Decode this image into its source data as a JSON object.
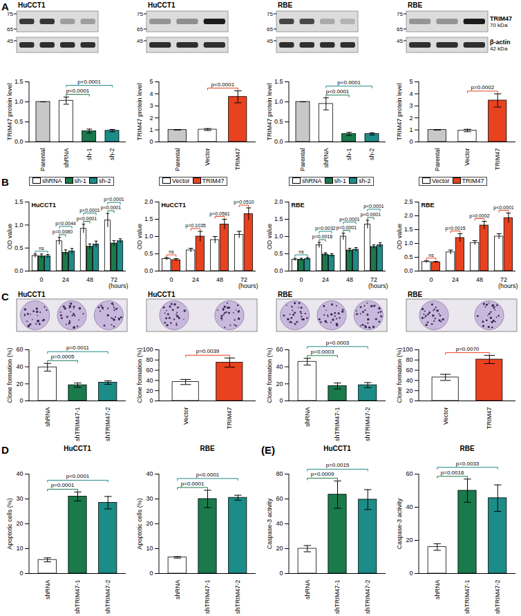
{
  "panel_letters": [
    "A",
    "B",
    "C",
    "D",
    "(E)"
  ],
  "blots": {
    "proteins": [
      {
        "name": "TRIM47",
        "size": "70 kDa"
      },
      {
        "name": "β-actin",
        "size": "42 kDa"
      }
    ],
    "ladder": {
      "TRIM47": [
        75,
        65
      ],
      "β-actin": [
        45
      ]
    },
    "panels": [
      {
        "title": "HuCCT1",
        "TRIM47": [
          0.8,
          0.82,
          0.3,
          0.3
        ],
        "β-actin": [
          0.85,
          0.85,
          0.85,
          0.85
        ]
      },
      {
        "title": "HuCCT1",
        "TRIM47": [
          0.35,
          0.38,
          0.95
        ],
        "β-actin": [
          0.85,
          0.85,
          0.85
        ]
      },
      {
        "title": "RBE",
        "TRIM47": [
          0.75,
          0.72,
          0.25,
          0.2
        ],
        "β-actin": [
          0.85,
          0.85,
          0.85,
          0.85
        ]
      },
      {
        "title": "RBE",
        "TRIM47": [
          0.35,
          0.35,
          0.95
        ],
        "β-actin": [
          0.85,
          0.85,
          0.85
        ]
      }
    ]
  },
  "colony_titles": [
    "HuCCT1",
    "HuCCT1",
    "RBE",
    "RBE"
  ],
  "chart_data": [
    {
      "type": "bar",
      "ylabel": "TRIM47 protein level",
      "categories": [
        "Parental",
        "shRNA",
        "sh-1",
        "sh-2"
      ],
      "values": [
        1.0,
        1.03,
        0.27,
        0.28
      ],
      "errors": [
        0.0,
        0.09,
        0.05,
        0.03
      ],
      "colors": [
        "#c8c8c8",
        "#ffffff",
        "#1a7a4c",
        "#1c8c88"
      ],
      "ylim": [
        0,
        1.5
      ],
      "yticks": [
        {
          "value": 0,
          "label": "0.0"
        },
        0.5,
        {
          "value": 1,
          "label": "1.0"
        },
        1.5
      ],
      "annotations": [
        {
          "from": "shRNA",
          "to": "sh-1",
          "text": "p<0.0001"
        },
        {
          "from": "shRNA",
          "to": "sh-2",
          "text": "p<0.0001"
        }
      ]
    },
    {
      "type": "bar",
      "ylabel": "TRIM47 protein level",
      "categories": [
        "Parental",
        "Vector",
        "TRIM47"
      ],
      "values": [
        1.0,
        1.03,
        3.75
      ],
      "errors": [
        0.0,
        0.08,
        0.5
      ],
      "colors": [
        "#c8c8c8",
        "#ffffff",
        "#e8421f"
      ],
      "ylim": [
        0,
        5
      ],
      "yticks": [
        0,
        1,
        2,
        3,
        4,
        5
      ],
      "annotations": [
        {
          "from": "Vector",
          "to": "TRIM47",
          "text": "p<0.0001"
        }
      ]
    },
    {
      "type": "bar",
      "ylabel": "TRIM47 protein level",
      "categories": [
        "Parental",
        "shRNA",
        "sh-1",
        "sh-2"
      ],
      "values": [
        1.0,
        0.95,
        0.2,
        0.2
      ],
      "errors": [
        0.0,
        0.15,
        0.04,
        0.03
      ],
      "colors": [
        "#c8c8c8",
        "#ffffff",
        "#1a7a4c",
        "#1c8c88"
      ],
      "ylim": [
        0,
        1.5
      ],
      "yticks": [
        {
          "value": 0,
          "label": "0.0"
        },
        0.5,
        {
          "value": 1,
          "label": "1.0"
        },
        1.5
      ],
      "annotations": [
        {
          "from": "shRNA",
          "to": "sh-1",
          "text": "p<0.0001"
        },
        {
          "from": "shRNA",
          "to": "sh-2",
          "text": "p<0.0001"
        }
      ]
    },
    {
      "type": "bar",
      "ylabel": "TRIM47 protein level",
      "categories": [
        "Parental",
        "Vector",
        "TRIM47"
      ],
      "values": [
        1.0,
        0.95,
        3.45
      ],
      "errors": [
        0.0,
        0.1,
        0.55
      ],
      "colors": [
        "#c8c8c8",
        "#ffffff",
        "#e8421f"
      ],
      "ylim": [
        0,
        5
      ],
      "yticks": [
        0,
        1,
        2,
        3,
        4,
        5
      ],
      "annotations": [
        {
          "from": "Vector",
          "to": "TRIM47",
          "text": "p=0.0002"
        }
      ]
    },
    {
      "type": "bar",
      "title": "HuCCT1",
      "ylabel": "OD value",
      "xlabel": "(hours)",
      "categories": [
        "0",
        "24",
        "48",
        "72"
      ],
      "legend": "top",
      "ylim": [
        0,
        1.5
      ],
      "yticks": [
        {
          "value": 0,
          "label": "0.0"
        },
        0.5,
        {
          "value": 1,
          "label": "1.0"
        },
        1.5
      ],
      "series": [
        {
          "name": "shRNA",
          "color": "#ffffff",
          "values": [
            0.33,
            0.65,
            0.92,
            1.1
          ],
          "errors": [
            0.04,
            0.08,
            0.1,
            0.15
          ]
        },
        {
          "name": "sh-1",
          "color": "#1a7a4c",
          "values": [
            0.32,
            0.4,
            0.53,
            0.6
          ],
          "errors": [
            0.05,
            0.06,
            0.06,
            0.06
          ]
        },
        {
          "name": "sh-2",
          "color": "#1c8c88",
          "values": [
            0.32,
            0.43,
            0.58,
            0.65
          ],
          "errors": [
            0.04,
            0.06,
            0.07,
            0.05
          ]
        }
      ],
      "annotations": [
        {
          "x": "0",
          "text": "ns"
        },
        {
          "x": "24",
          "series": "sh-1",
          "text": "p=0.0080"
        },
        {
          "x": "24",
          "series": "sh-2",
          "text": "p=0.0044"
        },
        {
          "x": "48",
          "series": "sh-1",
          "text": "p<0.0001"
        },
        {
          "x": "48",
          "series": "sh-2",
          "text": "p<0.0001"
        },
        {
          "x": "72",
          "series": "sh-1",
          "text": "p<0.0001"
        },
        {
          "x": "72",
          "series": "sh-2",
          "text": "p=0.0001"
        }
      ]
    },
    {
      "type": "bar",
      "title": "HuCCT1",
      "ylabel": "OD value",
      "xlabel": "(hours)",
      "categories": [
        "0",
        "24",
        "48",
        "72"
      ],
      "legend": "top",
      "ylim": [
        0,
        2
      ],
      "yticks": [
        {
          "value": 0,
          "label": "0.0"
        },
        0.5,
        {
          "value": 1,
          "label": "1.0"
        },
        1.5,
        {
          "value": 2,
          "label": "2.0"
        }
      ],
      "series": [
        {
          "name": "Vector",
          "color": "#ffffff",
          "values": [
            0.35,
            0.6,
            0.9,
            1.05
          ],
          "errors": [
            0.04,
            0.06,
            0.1,
            0.1
          ]
        },
        {
          "name": "TRIM47",
          "color": "#e8421f",
          "values": [
            0.32,
            1.0,
            1.35,
            1.65
          ],
          "errors": [
            0.04,
            0.15,
            0.15,
            0.18
          ]
        }
      ],
      "annotations": [
        {
          "x": "0",
          "text": "ns"
        },
        {
          "x": "24",
          "series": "TRIM47",
          "text": "p=0.1035"
        },
        {
          "x": "48",
          "series": "TRIM47",
          "text": "p=0.0561"
        },
        {
          "x": "72",
          "series": "TRIM47",
          "text": "p=0.0510"
        }
      ]
    },
    {
      "type": "bar",
      "title": "RBE",
      "ylabel": "OD value",
      "xlabel": "(hours)",
      "categories": [
        "0",
        "24",
        "48",
        "72"
      ],
      "legend": "top",
      "ylim": [
        0,
        2
      ],
      "yticks": [
        {
          "value": 0,
          "label": "0.0"
        },
        0.5,
        {
          "value": 1,
          "label": "1.0"
        },
        1.5,
        {
          "value": 2,
          "label": "2.0"
        }
      ],
      "series": [
        {
          "name": "shRNA",
          "color": "#ffffff",
          "values": [
            0.33,
            0.75,
            1.0,
            1.35
          ],
          "errors": [
            0.04,
            0.08,
            0.1,
            0.12
          ]
        },
        {
          "name": "sh-1",
          "color": "#1a7a4c",
          "values": [
            0.33,
            0.48,
            0.6,
            0.7
          ],
          "errors": [
            0.04,
            0.05,
            0.06,
            0.06
          ]
        },
        {
          "name": "sh-2",
          "color": "#1c8c88",
          "values": [
            0.35,
            0.45,
            0.62,
            0.75
          ],
          "errors": [
            0.04,
            0.05,
            0.06,
            0.07
          ]
        }
      ],
      "annotations": [
        {
          "x": "0",
          "text": "ns"
        },
        {
          "x": "24",
          "series": "sh-1",
          "text": "p=0.0018"
        },
        {
          "x": "24",
          "series": "sh-2",
          "text": "p=0.0032"
        },
        {
          "x": "48",
          "series": "sh-1",
          "text": "p<0.0001"
        },
        {
          "x": "48",
          "series": "sh-2",
          "text": "p<0.0001"
        },
        {
          "x": "72",
          "series": "sh-1",
          "text": "p<0.0001"
        },
        {
          "x": "72",
          "series": "sh-2",
          "text": "p<0.0001"
        }
      ]
    },
    {
      "type": "bar",
      "title": "RBE",
      "ylabel": "OD value",
      "xlabel": "(hours)",
      "categories": [
        "0",
        "24",
        "48",
        "72"
      ],
      "legend": "top",
      "ylim": [
        0,
        2.5
      ],
      "yticks": [
        {
          "value": 0,
          "label": "0.0"
        },
        0.5,
        {
          "value": 1,
          "label": "1.0"
        },
        1.5,
        {
          "value": 2,
          "label": "2.0"
        },
        2.5
      ],
      "series": [
        {
          "name": "Vector",
          "color": "#ffffff",
          "values": [
            0.33,
            0.68,
            1.02,
            1.25
          ],
          "errors": [
            0.04,
            0.08,
            0.08,
            0.1
          ]
        },
        {
          "name": "TRIM47",
          "color": "#e8421f",
          "values": [
            0.32,
            1.2,
            1.65,
            1.92
          ],
          "errors": [
            0.03,
            0.15,
            0.15,
            0.18
          ]
        }
      ],
      "annotations": [
        {
          "x": "0",
          "text": "ns"
        },
        {
          "x": "24",
          "series": "TRIM47",
          "text": "p=0.0015"
        },
        {
          "x": "48",
          "series": "TRIM47",
          "text": "p=0.0002"
        },
        {
          "x": "72",
          "series": "TRIM47",
          "text": "p<0.0001"
        }
      ]
    },
    {
      "type": "bar",
      "ylabel": "Clone formation (%)",
      "categories": [
        "shRNA",
        "shTRIM47-1",
        "shTRIM47-2"
      ],
      "values": [
        39.5,
        18.5,
        21.5
      ],
      "errors": [
        4.5,
        2.5,
        2
      ],
      "colors": [
        "#ffffff",
        "#1a7a4c",
        "#1c8c88"
      ],
      "ylim": [
        0,
        60
      ],
      "yticks": [
        0,
        20,
        40,
        60
      ],
      "annotations": [
        {
          "from": "shRNA",
          "to": "shTRIM47-1",
          "text": "p=0.0005"
        },
        {
          "from": "shRNA",
          "to": "shTRIM47-2",
          "text": "p=0.0011"
        }
      ]
    },
    {
      "type": "bar",
      "ylabel": "Clone formation (%)",
      "categories": [
        "Vector",
        "TRIM47"
      ],
      "values": [
        37,
        75
      ],
      "errors": [
        5,
        9
      ],
      "colors": [
        "#ffffff",
        "#e8421f"
      ],
      "ylim": [
        0,
        100
      ],
      "yticks": [
        0,
        20,
        40,
        60,
        80,
        100
      ],
      "annotations": [
        {
          "from": "Vector",
          "to": "TRIM47",
          "text": "p=0.0039"
        }
      ]
    },
    {
      "type": "bar",
      "ylabel": "Clone formation (%)",
      "categories": [
        "shRNA",
        "shTRIM47-1",
        "shTRIM47-2"
      ],
      "values": [
        46,
        17.5,
        18.5
      ],
      "errors": [
        4,
        3.5,
        3
      ],
      "colors": [
        "#ffffff",
        "#1a7a4c",
        "#1c8c88"
      ],
      "ylim": [
        0,
        60
      ],
      "yticks": [
        0,
        20,
        40,
        60
      ],
      "annotations": [
        {
          "from": "shRNA",
          "to": "shTRIM47-1",
          "text": "p=0.0003"
        },
        {
          "from": "shRNA",
          "to": "shTRIM47-2",
          "text": "p=0.0003"
        }
      ]
    },
    {
      "type": "bar",
      "ylabel": "Clone formation (%)",
      "categories": [
        "Vector",
        "TRIM47"
      ],
      "values": [
        46,
        81
      ],
      "errors": [
        6,
        8
      ],
      "colors": [
        "#ffffff",
        "#e8421f"
      ],
      "ylim": [
        0,
        100
      ],
      "yticks": [
        0,
        20,
        40,
        60,
        80,
        100
      ],
      "annotations": [
        {
          "from": "Vector",
          "to": "TRIM47",
          "text": "p=0.0070"
        }
      ]
    },
    {
      "type": "bar",
      "title": "HuCCT1",
      "ylabel": "Apoptotic cells (%)",
      "categories": [
        "shRNA",
        "shTRIM47-1",
        "shTRIM47-2"
      ],
      "values": [
        5.5,
        31,
        28.5
      ],
      "errors": [
        0.8,
        1.8,
        2.5
      ],
      "colors": [
        "#ffffff",
        "#1a7a4c",
        "#1c8c88"
      ],
      "ylim": [
        0,
        40
      ],
      "yticks": [
        0,
        10,
        20,
        30,
        40
      ],
      "annotations": [
        {
          "from": "shRNA",
          "to": "shTRIM47-1",
          "text": "p=0.0001"
        },
        {
          "from": "shRNA",
          "to": "shTRIM47-2",
          "text": "p<0.0001"
        }
      ]
    },
    {
      "type": "bar",
      "title": "RBE",
      "ylabel": "Apoptotic cells (%)",
      "categories": [
        "shRNA",
        "shTRIM47-1",
        "shTRIM47-2"
      ],
      "values": [
        6.5,
        30,
        30.5
      ],
      "errors": [
        0.3,
        3.5,
        1
      ],
      "colors": [
        "#ffffff",
        "#1a7a4c",
        "#1c8c88"
      ],
      "ylim": [
        0,
        40
      ],
      "yticks": [
        0,
        10,
        20,
        30,
        40
      ],
      "annotations": [
        {
          "from": "shRNA",
          "to": "shTRIM47-1",
          "text": "p=0.0001"
        },
        {
          "from": "shRNA",
          "to": "shTRIM47-2",
          "text": "p<0.0001"
        }
      ]
    },
    {
      "type": "bar",
      "title": "HuCCT1",
      "ylabel": "Caspase-3 activity",
      "categories": [
        "shRNA",
        "shTRIM47-1",
        "shTRIM47-2"
      ],
      "values": [
        20,
        63.5,
        59.5
      ],
      "errors": [
        2.5,
        11,
        8
      ],
      "colors": [
        "#ffffff",
        "#1a7a4c",
        "#1c8c88"
      ],
      "ylim": [
        0,
        80
      ],
      "yticks": [
        0,
        20,
        40,
        60,
        80
      ],
      "annotations": [
        {
          "from": "shRNA",
          "to": "shTRIM47-1",
          "text": "p=0.0009"
        },
        {
          "from": "shRNA",
          "to": "shTRIM47-2",
          "text": "p=0.0015"
        }
      ]
    },
    {
      "type": "bar",
      "title": "RBE",
      "ylabel": "Caspase-3 activity",
      "categories": [
        "shRNA",
        "shTRIM47-1",
        "shTRIM47-2"
      ],
      "values": [
        16,
        50,
        45.5
      ],
      "errors": [
        2,
        7,
        8
      ],
      "colors": [
        "#ffffff",
        "#1a7a4c",
        "#1c8c88"
      ],
      "ylim": [
        0,
        60
      ],
      "yticks": [
        0,
        20,
        40,
        60
      ],
      "annotations": [
        {
          "from": "shRNA",
          "to": "shTRIM47-1",
          "text": "p=0.0016"
        },
        {
          "from": "shRNA",
          "to": "shTRIM47-2",
          "text": "p=0.0033"
        }
      ]
    }
  ]
}
